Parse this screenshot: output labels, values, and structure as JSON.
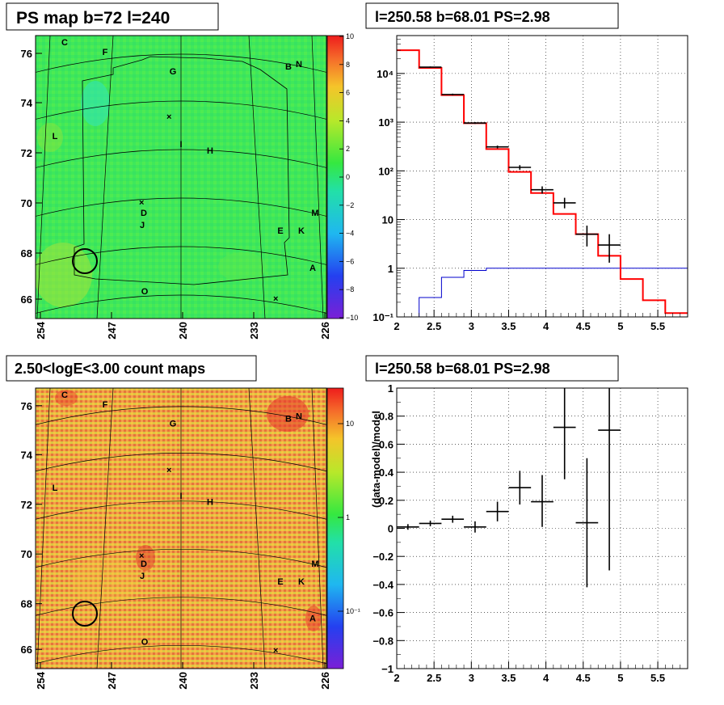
{
  "panels": {
    "ps_map": {
      "title": "PS map b=72 l=240"
    },
    "spectrum": {
      "title": "l=250.58 b=68.01 PS=2.98"
    },
    "count_map": {
      "title": "2.50<logE<3.00 count maps"
    },
    "residual": {
      "title": "l=250.58 b=68.01 PS=2.98"
    }
  },
  "colors": {
    "data": "#000000",
    "model": "#ff0000",
    "background": "#0000cc",
    "map_green": "#3fe85a",
    "count_orange": "#f0a54a"
  },
  "chart_data": [
    {
      "type": "heatmap",
      "id": "ps_map",
      "title": "PS map b=72 l=240",
      "x_ticks": [
        "254",
        "247",
        "240",
        "233",
        "226"
      ],
      "y_ticks": [
        "76",
        "74",
        "72",
        "70",
        "68",
        "66"
      ],
      "colorbar": {
        "min": -10,
        "max": 10,
        "ticks": [
          "10",
          "8",
          "6",
          "4",
          "2",
          "0",
          "−2",
          "−4",
          "−6",
          "−8",
          "−10"
        ]
      },
      "sources": [
        "C",
        "F",
        "G",
        "B",
        "N",
        "L",
        "I",
        "H",
        "D",
        "J",
        "M",
        "E",
        "K",
        "A",
        "O"
      ]
    },
    {
      "type": "line",
      "id": "spectrum",
      "title": "l=250.58 b=68.01 PS=2.98",
      "yscale": "log",
      "xlim": [
        2,
        5.9
      ],
      "ylim": [
        0.1,
        60000
      ],
      "x_ticks": [
        "2",
        "2.5",
        "3",
        "3.5",
        "4",
        "4.5",
        "5",
        "5.5"
      ],
      "y_ticks": [
        "10⁻¹",
        "1",
        "10",
        "10²",
        "10³",
        "10⁴"
      ],
      "grid": true,
      "model_edges": [
        2.0,
        2.3,
        2.6,
        2.9,
        3.2,
        3.5,
        3.8,
        4.1,
        4.4,
        4.7,
        5.0,
        5.3,
        5.6,
        5.9
      ],
      "model_values": [
        30000,
        13000,
        3600,
        950,
        280,
        95,
        35,
        13,
        5,
        1.8,
        0.6,
        0.22,
        0.12
      ],
      "background_edges": [
        2.3,
        2.6,
        2.9,
        3.2,
        5.9
      ],
      "background_values": [
        0.25,
        0.65,
        0.9,
        1.0
      ],
      "data_points": [
        {
          "x": 2.45,
          "xerr": 0.15,
          "y": 13500,
          "ylo": 13100,
          "yhi": 13900
        },
        {
          "x": 2.75,
          "xerr": 0.15,
          "y": 3700,
          "ylo": 3550,
          "yhi": 3850
        },
        {
          "x": 3.05,
          "xerr": 0.15,
          "y": 960,
          "ylo": 920,
          "yhi": 1000
        },
        {
          "x": 3.35,
          "xerr": 0.15,
          "y": 310,
          "ylo": 290,
          "yhi": 330
        },
        {
          "x": 3.65,
          "xerr": 0.15,
          "y": 118,
          "ylo": 105,
          "yhi": 131
        },
        {
          "x": 3.95,
          "xerr": 0.15,
          "y": 41,
          "ylo": 34,
          "yhi": 48
        },
        {
          "x": 4.25,
          "xerr": 0.15,
          "y": 22,
          "ylo": 17,
          "yhi": 28
        },
        {
          "x": 4.55,
          "xerr": 0.15,
          "y": 5,
          "ylo": 2.8,
          "yhi": 7.5
        },
        {
          "x": 4.85,
          "xerr": 0.15,
          "y": 3,
          "ylo": 1.3,
          "yhi": 5
        }
      ]
    },
    {
      "type": "heatmap",
      "id": "count_map",
      "title": "2.50<logE<3.00 count maps",
      "x_ticks": [
        "254",
        "247",
        "240",
        "233",
        "226"
      ],
      "y_ticks": [
        "76",
        "74",
        "72",
        "70",
        "68",
        "66"
      ],
      "colorbar": {
        "scale": "log",
        "ticks": [
          "10",
          "1",
          "10⁻¹"
        ]
      },
      "sources": [
        "C",
        "F",
        "G",
        "B",
        "N",
        "L",
        "I",
        "H",
        "D",
        "J",
        "M",
        "E",
        "K",
        "A",
        "O"
      ]
    },
    {
      "type": "scatter",
      "id": "residual",
      "title": "l=250.58 b=68.01 PS=2.98",
      "ylabel": "(data-model)/model",
      "xlim": [
        2,
        5.9
      ],
      "ylim": [
        -1,
        1
      ],
      "x_ticks": [
        "2",
        "2.5",
        "3",
        "3.5",
        "4",
        "4.5",
        "5",
        "5.5"
      ],
      "y_ticks": [
        "1",
        "0.8",
        "0.6",
        "0.4",
        "0.2",
        "0",
        "−0.2",
        "−0.4",
        "−0.6",
        "−0.8",
        "−1"
      ],
      "grid": true,
      "data_points": [
        {
          "x": 2.15,
          "xerr": 0.15,
          "y": 0.01,
          "ylo": -0.01,
          "yhi": 0.03
        },
        {
          "x": 2.45,
          "xerr": 0.15,
          "y": 0.035,
          "ylo": 0.015,
          "yhi": 0.055
        },
        {
          "x": 2.75,
          "xerr": 0.15,
          "y": 0.065,
          "ylo": 0.04,
          "yhi": 0.09
        },
        {
          "x": 3.05,
          "xerr": 0.15,
          "y": 0.01,
          "ylo": -0.03,
          "yhi": 0.05
        },
        {
          "x": 3.35,
          "xerr": 0.15,
          "y": 0.12,
          "ylo": 0.05,
          "yhi": 0.19
        },
        {
          "x": 3.65,
          "xerr": 0.15,
          "y": 0.29,
          "ylo": 0.17,
          "yhi": 0.41
        },
        {
          "x": 3.95,
          "xerr": 0.15,
          "y": 0.19,
          "ylo": 0.01,
          "yhi": 0.38
        },
        {
          "x": 4.25,
          "xerr": 0.15,
          "y": 0.72,
          "ylo": 0.35,
          "yhi": 1.0
        },
        {
          "x": 4.55,
          "xerr": 0.15,
          "y": 0.04,
          "ylo": -0.42,
          "yhi": 0.5
        },
        {
          "x": 4.85,
          "xerr": 0.15,
          "y": 0.7,
          "ylo": -0.3,
          "yhi": 1.0
        }
      ]
    }
  ]
}
